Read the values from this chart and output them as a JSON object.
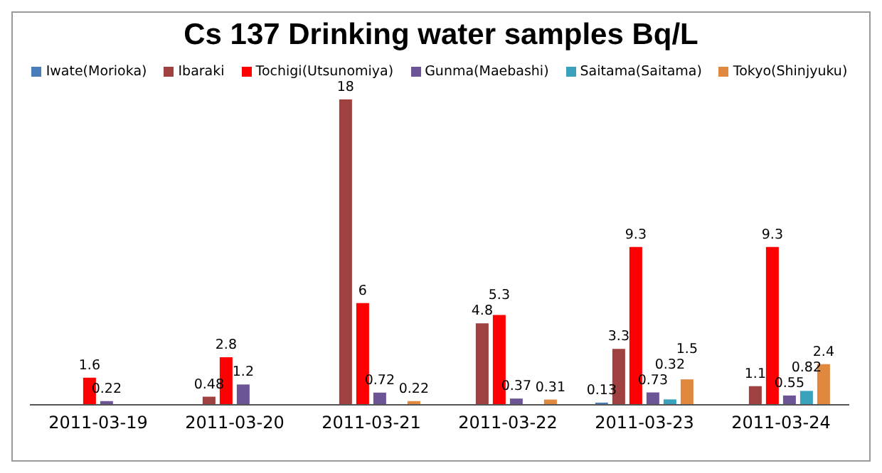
{
  "chart_data": {
    "type": "bar",
    "title": "Cs 137 Drinking water samples Bq/L",
    "categories": [
      "2011-03-19",
      "2011-03-20",
      "2011-03-21",
      "2011-03-22",
      "2011-03-23",
      "2011-03-24"
    ],
    "series": [
      {
        "name": "Iwate(Morioka)",
        "color": "#4a7ebb",
        "values": [
          null,
          null,
          null,
          null,
          0.13,
          null
        ]
      },
      {
        "name": "Ibaraki",
        "color": "#a0413f",
        "values": [
          null,
          0.48,
          18,
          4.8,
          3.3,
          1.1
        ]
      },
      {
        "name": "Tochigi(Utsunomiya)",
        "color": "#ff0000",
        "values": [
          1.6,
          2.8,
          6,
          5.3,
          9.3,
          9.3
        ]
      },
      {
        "name": "Gunma(Maebashi)",
        "color": "#6b5597",
        "values": [
          0.22,
          1.2,
          0.72,
          0.37,
          0.73,
          0.55
        ]
      },
      {
        "name": "Saitama(Saitama)",
        "color": "#3ba2bd",
        "values": [
          null,
          null,
          null,
          null,
          0.32,
          0.82
        ]
      },
      {
        "name": "Tokyo(Shinjyuku)",
        "color": "#e0883e",
        "values": [
          null,
          null,
          0.22,
          0.31,
          1.5,
          2.4
        ]
      }
    ],
    "data_labels": true,
    "legend": "top",
    "grid": false,
    "tick_labels": "x"
  }
}
